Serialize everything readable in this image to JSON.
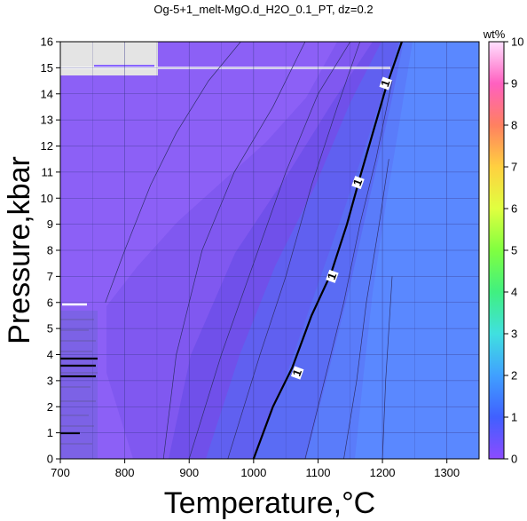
{
  "chart_data": {
    "type": "heatmap",
    "title": "Og-5+1_melt-MgO.d_H2O_0.1_PT, dz=0.2",
    "xlabel": "Temperature,°C",
    "ylabel": "Pressure,kbar",
    "xlim": [
      700,
      1350
    ],
    "ylim": [
      0,
      16
    ],
    "x_ticks": [
      700,
      800,
      900,
      1000,
      1100,
      1200,
      1300
    ],
    "y_ticks": [
      0,
      1,
      2,
      3,
      4,
      5,
      6,
      7,
      8,
      9,
      10,
      11,
      12,
      13,
      14,
      15,
      16
    ],
    "grid": true,
    "colorbar": {
      "label": "wt%",
      "min": 0,
      "max": 10,
      "ticks": [
        0,
        1,
        2,
        3,
        4,
        5,
        6,
        7,
        8,
        9,
        10
      ],
      "colors": [
        "#8c4bff",
        "#4060ff",
        "#40a0ff",
        "#40e0e0",
        "#40f080",
        "#80ff40",
        "#e0ff40",
        "#ffd040",
        "#ff8060",
        "#ff60c0",
        "#ffe0ff"
      ]
    },
    "contours": {
      "bold_level_label": "1",
      "bold_line": [
        [
          1000,
          0
        ],
        [
          1030,
          2
        ],
        [
          1060,
          3.5
        ],
        [
          1090,
          5.5
        ],
        [
          1120,
          7.1
        ],
        [
          1145,
          9
        ],
        [
          1165,
          10.8
        ],
        [
          1185,
          12.5
        ],
        [
          1205,
          14.2
        ],
        [
          1230,
          16
        ]
      ],
      "thin_lines": [
        [
          [
            770,
            6
          ],
          [
            800,
            8
          ],
          [
            840,
            10.5
          ],
          [
            880,
            12.5
          ],
          [
            930,
            14.5
          ],
          [
            980,
            16
          ]
        ],
        [
          [
            860,
            0
          ],
          [
            880,
            4
          ],
          [
            920,
            8
          ],
          [
            970,
            11
          ],
          [
            1030,
            13.5
          ],
          [
            1080,
            16
          ]
        ],
        [
          [
            900,
            0
          ],
          [
            950,
            4
          ],
          [
            1000,
            7.5
          ],
          [
            1050,
            11
          ],
          [
            1100,
            14
          ],
          [
            1150,
            16
          ]
        ],
        [
          [
            960,
            0
          ],
          [
            1010,
            4
          ],
          [
            1050,
            7
          ],
          [
            1090,
            10.5
          ],
          [
            1130,
            13.5
          ],
          [
            1165,
            16
          ]
        ],
        [
          [
            1080,
            0
          ],
          [
            1110,
            3
          ],
          [
            1140,
            6
          ],
          [
            1165,
            9
          ],
          [
            1190,
            11.5
          ],
          [
            1215,
            14.5
          ]
        ],
        [
          [
            1140,
            0
          ],
          [
            1160,
            3
          ],
          [
            1175,
            6
          ],
          [
            1195,
            9
          ],
          [
            1210,
            11.5
          ]
        ],
        [
          [
            1200,
            0
          ],
          [
            1205,
            3
          ],
          [
            1215,
            7
          ]
        ]
      ]
    }
  }
}
